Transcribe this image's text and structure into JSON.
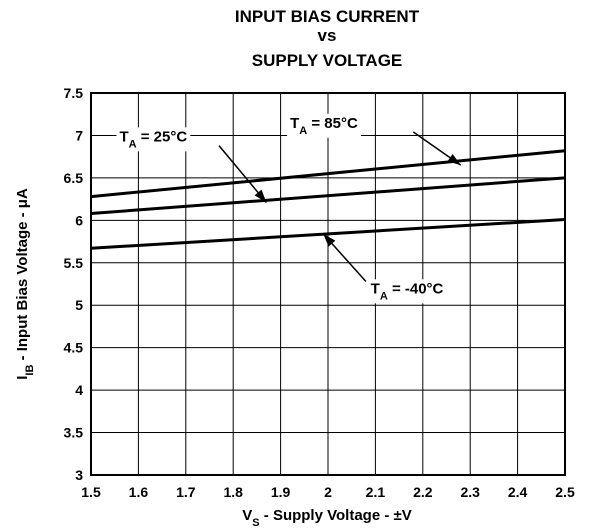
{
  "chart_data": {
    "type": "line",
    "title": [
      "INPUT BIAS CURRENT",
      "vs",
      "SUPPLY VOLTAGE"
    ],
    "xlabel": {
      "main": "V",
      "sub": "S",
      "rest": " - Supply Voltage - ±V"
    },
    "ylabel": {
      "main": "I",
      "sub": "IB",
      "rest": " - Input Bias Voltage - μA"
    },
    "xlim": [
      1.5,
      2.5
    ],
    "ylim": [
      3,
      7.5
    ],
    "grid": true,
    "xticks": [
      "1.5",
      "1.6",
      "1.7",
      "1.8",
      "1.9",
      "2",
      "2.1",
      "2.2",
      "2.3",
      "2.4",
      "2.5"
    ],
    "yticks": [
      "3",
      "3.5",
      "4",
      "4.5",
      "5",
      "5.5",
      "6",
      "6.5",
      "7",
      "7.5"
    ],
    "series": [
      {
        "name": "T_A = 85°C",
        "x": [
          1.5,
          2.5
        ],
        "y": [
          6.28,
          6.82
        ]
      },
      {
        "name": "T_A = 25°C",
        "x": [
          1.5,
          2.5
        ],
        "y": [
          6.08,
          6.5
        ]
      },
      {
        "name": "T_A = -40°C",
        "x": [
          1.5,
          2.5
        ],
        "y": [
          5.67,
          6.01
        ]
      }
    ],
    "annotations": [
      {
        "main": "T",
        "sub": "A",
        "rest": " = 25°C",
        "text_x": 1.56,
        "text_y": 6.93,
        "arrow_from": [
          1.77,
          6.88
        ],
        "arrow_to": [
          1.87,
          6.21
        ]
      },
      {
        "main": "T",
        "sub": "A",
        "rest": " = 85°C",
        "text_x": 1.92,
        "text_y": 7.09,
        "arrow_from": [
          2.18,
          7.04
        ],
        "arrow_to": [
          2.28,
          6.65
        ]
      },
      {
        "main": "T",
        "sub": "A",
        "rest": " = -40°C",
        "text_x": 2.09,
        "text_y": 5.14,
        "arrow_from": [
          2.08,
          5.28
        ],
        "arrow_to": [
          1.99,
          5.84
        ]
      }
    ]
  }
}
